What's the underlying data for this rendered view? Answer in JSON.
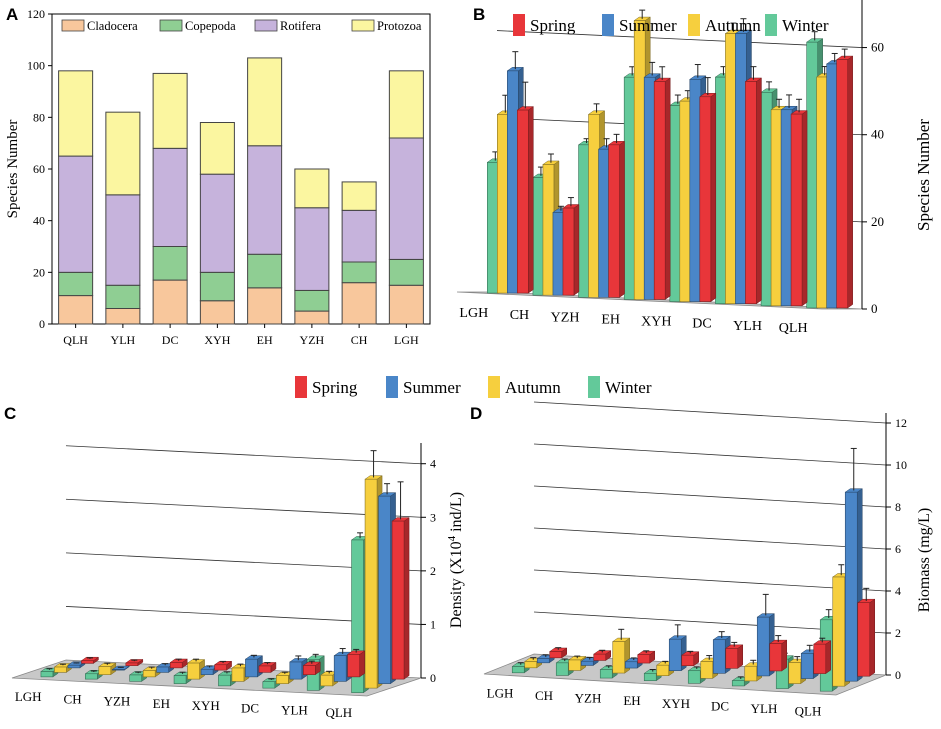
{
  "colors": {
    "spring": "#e8363a",
    "summer": "#4a86c8",
    "autumn": "#f6cf3e",
    "winter": "#63c99a",
    "cladocera": "#f8c79c",
    "copepoda": "#8fce93",
    "rotifera": "#c6b3dc",
    "protozoa": "#fbf6a0",
    "floor": "#c8c8c8"
  },
  "season_legend": [
    "Spring",
    "Summer",
    "Autumn",
    "Winter"
  ],
  "chart_data": [
    {
      "panel": "A",
      "type": "bar",
      "stacked": true,
      "ylabel": "Species Number",
      "ylim": [
        0,
        120
      ],
      "yticks": [
        "0",
        "20",
        "40",
        "60",
        "80",
        "100",
        "120"
      ],
      "categories": [
        "QLH",
        "YLH",
        "DC",
        "XYH",
        "EH",
        "YZH",
        "CH",
        "LGH"
      ],
      "series": [
        {
          "name": "Cladocera",
          "values": [
            11,
            6,
            17,
            9,
            14,
            5,
            16,
            15
          ]
        },
        {
          "name": "Copepoda",
          "values": [
            9,
            9,
            13,
            11,
            13,
            8,
            8,
            10
          ]
        },
        {
          "name": "Rotifera",
          "values": [
            45,
            35,
            38,
            38,
            42,
            32,
            20,
            47
          ]
        },
        {
          "name": "Protozoa",
          "values": [
            33,
            32,
            29,
            20,
            34,
            15,
            11,
            26
          ]
        }
      ]
    },
    {
      "panel": "B",
      "type": "bar",
      "ylabel": "Species Number",
      "ylim": [
        0,
        70
      ],
      "yticks": [
        "0",
        "20",
        "40",
        "60"
      ],
      "categories": [
        "LGH",
        "CH",
        "YZH",
        "EH",
        "XYH",
        "DC",
        "YLH",
        "QLH"
      ],
      "series": [
        {
          "name": "Spring",
          "values": [
            42,
            20,
            35,
            50,
            47,
            51,
            44,
            57
          ]
        },
        {
          "name": "Summer",
          "values": [
            51,
            19,
            34,
            51,
            51,
            62,
            45,
            56
          ]
        },
        {
          "name": "Autumn",
          "values": [
            41,
            30,
            42,
            64,
            46,
            62,
            45,
            53
          ]
        },
        {
          "name": "Winter",
          "values": [
            30,
            27,
            35,
            51,
            45,
            52,
            49,
            61
          ]
        }
      ],
      "errors": [
        {
          "name": "Spring",
          "values": [
            6,
            2,
            2,
            3,
            4,
            3,
            3,
            2
          ]
        },
        {
          "name": "Summer",
          "values": [
            4,
            1,
            2,
            3,
            3,
            3,
            3,
            2
          ]
        },
        {
          "name": "Autumn",
          "values": [
            4,
            2,
            2,
            2,
            2,
            2,
            2,
            2
          ]
        },
        {
          "name": "Winter",
          "values": [
            2,
            2,
            1,
            2,
            2,
            2,
            2,
            2
          ]
        }
      ]
    },
    {
      "panel": "C",
      "type": "bar",
      "ylabel_main": "Density (X10",
      "ylabel_sup": "4",
      "ylabel_tail": " ind/L)",
      "ylim": [
        0,
        4.2
      ],
      "yticks": [
        "0",
        "1",
        "2",
        "3",
        "4"
      ],
      "categories": [
        "LGH",
        "CH",
        "YZH",
        "EH",
        "XYH",
        "DC",
        "YLH",
        "QLH"
      ],
      "series": [
        {
          "name": "Spring",
          "values": [
            0.05,
            0.05,
            0.1,
            0.1,
            0.12,
            0.17,
            0.42,
            2.95
          ]
        },
        {
          "name": "Summer",
          "values": [
            0.05,
            0.01,
            0.1,
            0.1,
            0.33,
            0.32,
            0.48,
            3.5
          ]
        },
        {
          "name": "Autumn",
          "values": [
            0.1,
            0.15,
            0.12,
            0.3,
            0.25,
            0.15,
            0.2,
            3.9
          ]
        },
        {
          "name": "Winter",
          "values": [
            0.1,
            0.1,
            0.12,
            0.15,
            0.2,
            0.12,
            0.58,
            2.85
          ]
        }
      ],
      "errors": [
        {
          "name": "Spring",
          "values": [
            0.02,
            0.02,
            0.03,
            0.03,
            0.03,
            0.05,
            0.06,
            0.7
          ]
        },
        {
          "name": "Summer",
          "values": [
            0.01,
            0.01,
            0.03,
            0.03,
            0.04,
            0.08,
            0.1,
            0.2
          ]
        },
        {
          "name": "Autumn",
          "values": [
            0.02,
            0.03,
            0.03,
            0.04,
            0.04,
            0.03,
            0.04,
            0.5
          ]
        },
        {
          "name": "Winter",
          "values": [
            0.02,
            0.02,
            0.02,
            0.03,
            0.03,
            0.02,
            0.06,
            0.1
          ]
        }
      ]
    },
    {
      "panel": "D",
      "type": "bar",
      "ylabel": "Biomass (mg/L)",
      "ylim": [
        0,
        12
      ],
      "yticks": [
        "0",
        "2",
        "4",
        "6",
        "8",
        "10",
        "12"
      ],
      "categories": [
        "LGH",
        "CH",
        "YZH",
        "EH",
        "XYH",
        "DC",
        "YLH",
        "QLH"
      ],
      "series": [
        {
          "name": "Spring",
          "values": [
            0.3,
            0.3,
            0.4,
            0.5,
            0.95,
            1.3,
            1.4,
            3.5
          ]
        },
        {
          "name": "Summer",
          "values": [
            0.2,
            0.2,
            0.3,
            1.5,
            1.6,
            2.8,
            1.2,
            9.0
          ]
        },
        {
          "name": "Autumn",
          "values": [
            0.3,
            0.5,
            1.5,
            0.5,
            0.8,
            0.7,
            1.0,
            5.2
          ]
        },
        {
          "name": "Winter",
          "values": [
            0.3,
            0.6,
            0.4,
            0.35,
            0.6,
            0.25,
            1.4,
            3.4
          ]
        }
      ],
      "errors": [
        {
          "name": "Spring",
          "values": [
            0.1,
            0.1,
            0.1,
            0.1,
            0.2,
            0.3,
            0.2,
            0.6
          ]
        },
        {
          "name": "Summer",
          "values": [
            0.1,
            0.1,
            0.1,
            0.6,
            0.3,
            1.0,
            0.3,
            2.0
          ]
        },
        {
          "name": "Autumn",
          "values": [
            0.1,
            0.1,
            0.5,
            0.1,
            0.2,
            0.2,
            0.2,
            0.5
          ]
        },
        {
          "name": "Winter",
          "values": [
            0.1,
            0.1,
            0.1,
            0.1,
            0.1,
            0.1,
            0.2,
            0.4
          ]
        }
      ]
    }
  ]
}
